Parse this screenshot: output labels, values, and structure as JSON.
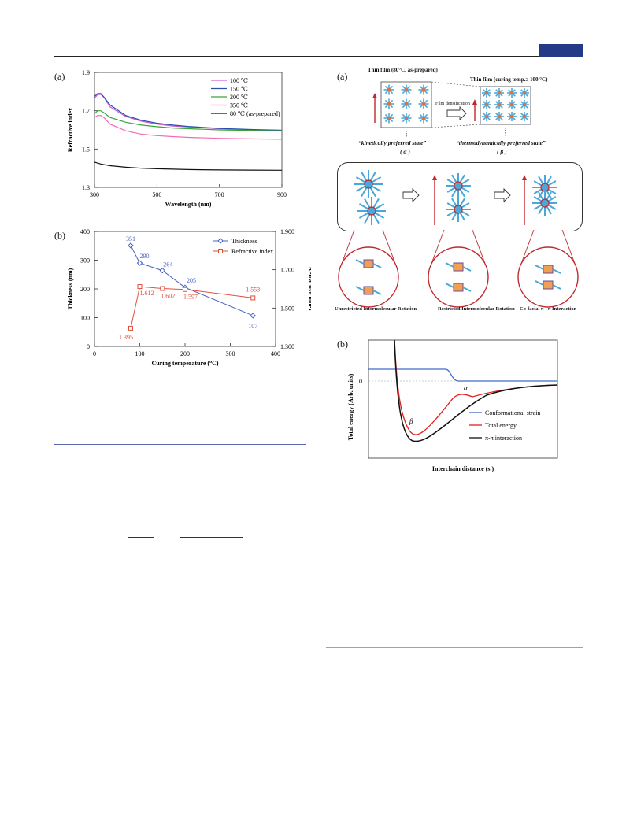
{
  "figure_left_a": {
    "panel_label": "(a)",
    "chart_data": {
      "type": "line",
      "xlabel": "Wavelength (nm)",
      "ylabel": "Refractive index",
      "xlim": [
        300,
        900
      ],
      "ylim": [
        1.3,
        1.9
      ],
      "xticks": [
        "300",
        "500",
        "700",
        "900"
      ],
      "yticks": [
        "1.3",
        "1.5",
        "1.7",
        "1.9"
      ],
      "legend_position": "top-right",
      "series": [
        {
          "name": "100 ℃",
          "color": "#d060d0",
          "x": [
            300,
            310,
            320,
            330,
            350,
            400,
            450,
            500,
            550,
            600,
            700,
            800,
            900
          ],
          "y": [
            1.765,
            1.785,
            1.785,
            1.77,
            1.72,
            1.67,
            1.645,
            1.63,
            1.62,
            1.615,
            1.606,
            1.601,
            1.598
          ]
        },
        {
          "name": "150 ℃",
          "color": "#2a4fb0",
          "x": [
            300,
            310,
            320,
            330,
            350,
            400,
            450,
            500,
            550,
            600,
            700,
            800,
            900
          ],
          "y": [
            1.775,
            1.79,
            1.79,
            1.772,
            1.73,
            1.675,
            1.65,
            1.635,
            1.625,
            1.618,
            1.608,
            1.602,
            1.598
          ]
        },
        {
          "name": "200 ℃",
          "color": "#3aa43a",
          "x": [
            300,
            310,
            320,
            330,
            350,
            400,
            450,
            500,
            550,
            600,
            700,
            800,
            900
          ],
          "y": [
            1.685,
            1.7,
            1.7,
            1.69,
            1.665,
            1.64,
            1.625,
            1.617,
            1.61,
            1.606,
            1.6,
            1.597,
            1.595
          ]
        },
        {
          "name": "350 ℃",
          "color": "#f06cb4",
          "x": [
            300,
            310,
            320,
            330,
            350,
            400,
            450,
            500,
            550,
            600,
            700,
            800,
            900
          ],
          "y": [
            1.665,
            1.675,
            1.675,
            1.665,
            1.63,
            1.595,
            1.578,
            1.57,
            1.565,
            1.561,
            1.556,
            1.553,
            1.551
          ]
        },
        {
          "name": "80 ℃ (as-prepared)",
          "color": "#111111",
          "x": [
            300,
            320,
            350,
            400,
            450,
            500,
            550,
            600,
            700,
            800,
            900
          ],
          "y": [
            1.432,
            1.422,
            1.413,
            1.405,
            1.4,
            1.397,
            1.395,
            1.393,
            1.391,
            1.39,
            1.389
          ]
        }
      ]
    }
  },
  "figure_left_b": {
    "panel_label": "(b)",
    "chart_data": {
      "type": "line",
      "xlabel_main": "Curing temperature (",
      "xlabel_sup": "o",
      "xlabel_end": "C)",
      "ylabel_left": "Thickness (nm)",
      "ylabel_right": "Refractive index",
      "xlim": [
        0,
        400
      ],
      "ylim_left": [
        0,
        400
      ],
      "ylim_right": [
        1.3,
        1.9
      ],
      "xticks": [
        "0",
        "100",
        "200",
        "300",
        "400"
      ],
      "yticks_left": [
        "0",
        "100",
        "200",
        "300",
        "400"
      ],
      "yticks_right": [
        "1.300",
        "1.500",
        "1.700",
        "1.900"
      ],
      "legend_position": "top-right",
      "series": [
        {
          "name": "Thickness",
          "color": "#4a62c0",
          "marker": "diamond",
          "axis": "left",
          "x": [
            80,
            100,
            150,
            200,
            350
          ],
          "y": [
            351,
            290,
            264,
            205,
            107
          ],
          "labels": [
            "351",
            "290",
            "264",
            "205",
            "107"
          ]
        },
        {
          "name": "Refractive index",
          "color": "#e0503c",
          "marker": "square",
          "axis": "right",
          "x": [
            80,
            100,
            150,
            200,
            350
          ],
          "y": [
            1.395,
            1.612,
            1.602,
            1.597,
            1.553
          ],
          "labels": [
            "1.395",
            "1.612",
            "1.602",
            "1.597",
            "1.553"
          ]
        }
      ]
    }
  },
  "figure_right_a": {
    "panel_label": "(a)",
    "film_left_title": "Thin film (80°C, as-prepared)",
    "film_right_title": "Thin film (curing temp.≥ 100 °C)",
    "densification_label": "Film densification",
    "state_left": "“kinetically preferred state”",
    "state_left_symbol": "( α )",
    "state_right": "“thermodynamically preferred state”",
    "state_right_symbol": "( β )",
    "captions": [
      "Unrestricted Intermolecular Rotation",
      "Restricted Intermolecular Rotation",
      "Co-facial π - π Interaction"
    ]
  },
  "figure_right_b": {
    "panel_label": "(b)",
    "chart_data": {
      "type": "line",
      "xlabel": "Interchain distance (s )",
      "ylabel": "Total energy (Arb. units)",
      "yticks": [
        "0"
      ],
      "annotations": [
        "β",
        "α"
      ],
      "legend_position": "bottom-right",
      "series": [
        {
          "name": "Conformational strain",
          "color": "#3c6cc8"
        },
        {
          "name": "Total energy",
          "color": "#e02020"
        },
        {
          "name": "π-π interaction",
          "color": "#111111"
        }
      ]
    }
  },
  "colors": {
    "header_tag": "#243a87",
    "rule": "#5a6aa8",
    "scheme_red": "#c0272d",
    "molecule": "#4aa8d8"
  }
}
